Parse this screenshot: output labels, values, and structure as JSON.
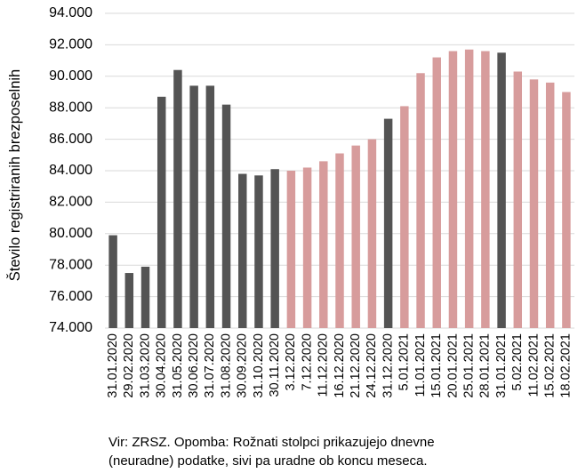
{
  "chart_data": {
    "type": "bar",
    "ylabel": "Število registriranih brezposelnih",
    "xlabel": "",
    "ylim": [
      74000,
      94000
    ],
    "yticks": [
      74000,
      76000,
      78000,
      80000,
      82000,
      84000,
      86000,
      88000,
      90000,
      92000,
      94000
    ],
    "ytick_labels": [
      "74.000",
      "76.000",
      "78.000",
      "80.000",
      "82.000",
      "84.000",
      "86.000",
      "88.000",
      "90.000",
      "92.000",
      "94.000"
    ],
    "grid": true,
    "categories": [
      "31.01.2020",
      "29.02.2020",
      "31.03.2020",
      "30.04.2020",
      "31.05.2020",
      "30.06.2020",
      "31.07.2020",
      "31.08.2020",
      "30.09.2020",
      "31.10.2020",
      "30.11.2020",
      "3.12.2020",
      "7.12.2020",
      "11.12.2020",
      "16.12.2020",
      "21.12.2020",
      "24.12.2020",
      "31.12.2020",
      "5.01.2021",
      "11.01.2021",
      "15.01.2021",
      "20.01.2021",
      "25.01.2021",
      "28.01.2021",
      "31.01.2021",
      "5.02.2021",
      "11.02.2021",
      "15.02.2021",
      "18.02.2021"
    ],
    "values": [
      79900,
      77500,
      77900,
      88700,
      90400,
      89400,
      89400,
      88200,
      83800,
      83700,
      84100,
      84000,
      84200,
      84600,
      85100,
      85600,
      86000,
      87300,
      88100,
      90200,
      91200,
      91600,
      91700,
      91600,
      91500,
      90300,
      89800,
      89600,
      89000
    ],
    "kind": [
      "monthly",
      "monthly",
      "monthly",
      "monthly",
      "monthly",
      "monthly",
      "monthly",
      "monthly",
      "monthly",
      "monthly",
      "monthly",
      "daily",
      "daily",
      "daily",
      "daily",
      "daily",
      "daily",
      "monthly",
      "daily",
      "daily",
      "daily",
      "daily",
      "daily",
      "daily",
      "monthly",
      "daily",
      "daily",
      "daily",
      "daily"
    ],
    "colors": {
      "monthly": "#545454",
      "daily": "#d79c9c"
    }
  },
  "note": {
    "line1": "Vir: ZRSZ. Opomba: Rožnati stolpci prikazujejo dnevne",
    "line2": "(neuradne) podatke, sivi pa uradne ob koncu meseca."
  }
}
